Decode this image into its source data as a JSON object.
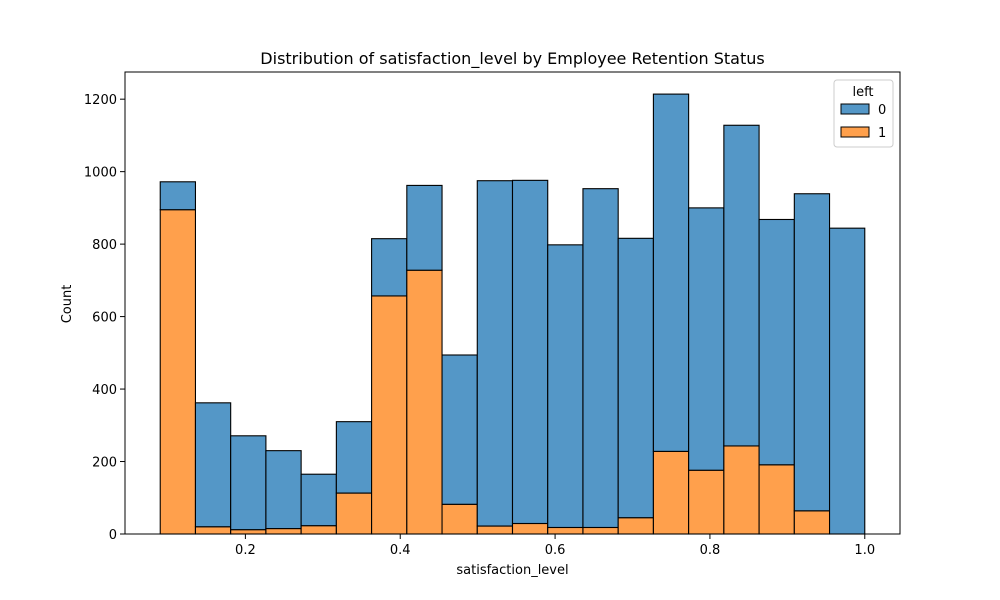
{
  "chart_data": {
    "type": "bar",
    "title": "Distribution of satisfaction_level by Employee Retention Status",
    "xlabel": "satisfaction_level",
    "ylabel": "Count",
    "stacked": true,
    "bin_edges": [
      0.09,
      0.1355,
      0.181,
      0.2265,
      0.272,
      0.3175,
      0.363,
      0.4085,
      0.454,
      0.4995,
      0.545,
      0.5905,
      0.636,
      0.6815,
      0.727,
      0.7725,
      0.818,
      0.8635,
      0.909,
      0.9545,
      1.0
    ],
    "xlim": [
      0.0445,
      1.0455
    ],
    "ylim": [
      0,
      1275
    ],
    "xticks": [
      0.2,
      0.4,
      0.6,
      0.8,
      1.0
    ],
    "xtick_labels": [
      "0.2",
      "0.4",
      "0.6",
      "0.8",
      "1.0"
    ],
    "yticks": [
      0,
      200,
      400,
      600,
      800,
      1000,
      1200
    ],
    "ytick_labels": [
      "0",
      "200",
      "400",
      "600",
      "800",
      "1000",
      "1200"
    ],
    "grid": false,
    "legend": {
      "title": "left",
      "placement": "top-right"
    },
    "series": [
      {
        "name": "0",
        "color": "#5497c7",
        "values": [
          77,
          342,
          259,
          215,
          142,
          197,
          158,
          234,
          412,
          953,
          947,
          780,
          935,
          771,
          986,
          724,
          885,
          677,
          875,
          844
        ]
      },
      {
        "name": "1",
        "color": "#ffa04c",
        "values": [
          895,
          20,
          12,
          15,
          23,
          113,
          657,
          728,
          82,
          22,
          29,
          18,
          18,
          45,
          228,
          176,
          243,
          191,
          64,
          0
        ]
      }
    ]
  }
}
